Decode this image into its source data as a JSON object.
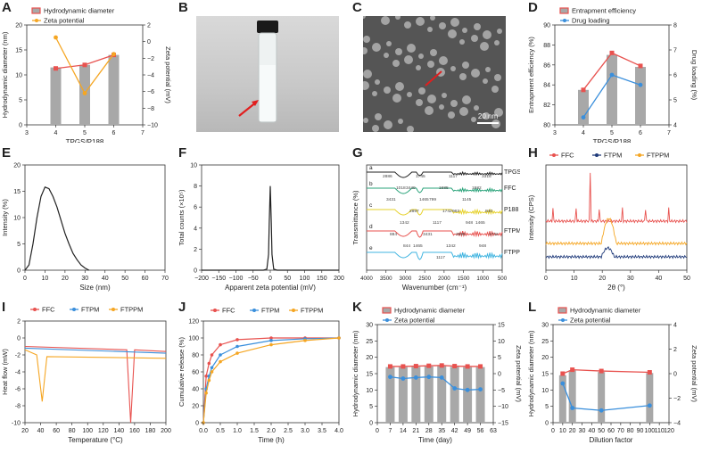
{
  "colors": {
    "bar": "#a8a8a8",
    "red": "#e8524f",
    "orange": "#f5a623",
    "blue": "#3a8fdc",
    "black": "#222222",
    "green": "#2aa37a",
    "yellow": "#e6d12a",
    "cyan": "#40b4e0",
    "purple": "#6a5acd",
    "navy": "#1f3a7a"
  },
  "panels": {
    "A": {
      "letter": "A",
      "xlabel": "TPGS/P188",
      "ylabel_left": "Hydrodynamic diameter (nm)",
      "ylabel_right": "Zeta potential (mV)",
      "legend": [
        "Hydrodynamic diameter",
        "Zeta potential"
      ],
      "xticks": [
        "3",
        "4",
        "5",
        "6",
        "7"
      ],
      "ylticks": [
        "0",
        "5",
        "10",
        "15",
        "20"
      ],
      "yrticks": [
        "2",
        "0",
        "−2",
        "−4",
        "−6",
        "−8",
        "−10"
      ]
    },
    "B": {
      "letter": "B"
    },
    "C": {
      "letter": "C",
      "scalebar": "20 nm"
    },
    "D": {
      "letter": "D",
      "xlabel": "TPGS/P188",
      "ylabel_left": "Entrapment efficiency (%)",
      "ylabel_right": "Drug loading (%)",
      "legend": [
        "Entrapment efficiency",
        "Drug loading"
      ],
      "xticks": [
        "3",
        "4",
        "5",
        "6",
        "7"
      ],
      "ylticks": [
        "80",
        "82",
        "84",
        "86",
        "88",
        "90"
      ],
      "yrticks": [
        "4",
        "5",
        "6",
        "7",
        "8"
      ]
    },
    "E": {
      "letter": "E",
      "xlabel": "Size (nm)",
      "ylabel": "Intensity (%)",
      "xticks": [
        "0",
        "10",
        "20",
        "30",
        "40",
        "50",
        "60",
        "70"
      ],
      "yticks": [
        "0",
        "5",
        "10",
        "15",
        "20"
      ]
    },
    "F": {
      "letter": "F",
      "xlabel": "Apparent zeta potential (mV)",
      "ylabel": "Total counts (×10⁵)",
      "xticks": [
        "−200",
        "−150",
        "−100",
        "−50",
        "0",
        "50",
        "100",
        "150",
        "200"
      ],
      "yticks": [
        "0",
        "2",
        "4",
        "6",
        "8",
        "10"
      ]
    },
    "G": {
      "letter": "G",
      "xlabel": "Wavenumber (cm⁻¹)",
      "ylabel": "Transmittance (%)",
      "xticks": [
        "4000",
        "3500",
        "3000",
        "2500",
        "2000",
        "1500",
        "1000",
        "500"
      ],
      "traces": [
        {
          "tag": "a",
          "name": "TPGS"
        },
        {
          "tag": "b",
          "name": "FFC"
        },
        {
          "tag": "c",
          "name": "P188"
        },
        {
          "tag": "d",
          "name": "FTPM"
        },
        {
          "tag": "e",
          "name": "FTPPM"
        }
      ],
      "peak_labels": [
        "2886",
        "1745",
        "1117",
        "3316",
        "3449",
        "1685",
        "1582",
        "1018",
        "799",
        "1145",
        "3431",
        "1465",
        "963",
        "840",
        "2897",
        "1742",
        "1465",
        "1342",
        "1117",
        "948",
        "884",
        "3431",
        "2895",
        "1742",
        "1465",
        "1342",
        "948",
        "844",
        "1117"
      ]
    },
    "H": {
      "letter": "H",
      "xlabel": "2θ (°)",
      "ylabel": "Intensity (CPS)",
      "legend": [
        "FFC",
        "FTPM",
        "FTPPM"
      ],
      "xticks": [
        "0",
        "10",
        "20",
        "30",
        "40",
        "50"
      ]
    },
    "I": {
      "letter": "I",
      "xlabel": "Temperature (°C)",
      "ylabel": "Heat flow (mW)",
      "legend": [
        "FFC",
        "FTPM",
        "FTPPM"
      ],
      "xticks": [
        "20",
        "40",
        "60",
        "80",
        "100",
        "120",
        "140",
        "160",
        "180",
        "200"
      ],
      "yticks": [
        "-10",
        "-8",
        "-6",
        "-4",
        "-2",
        "0",
        "2"
      ]
    },
    "J": {
      "letter": "J",
      "xlabel": "Time (h)",
      "ylabel": "Cumulative release (%)",
      "legend": [
        "FFC",
        "FTPM",
        "FTPPM"
      ],
      "xticks": [
        "0.0",
        "0.5",
        "1.0",
        "1.5",
        "2.0",
        "2.5",
        "3.0",
        "3.5",
        "4.0"
      ],
      "yticks": [
        "0",
        "20",
        "40",
        "60",
        "80",
        "100",
        "120"
      ]
    },
    "K": {
      "letter": "K",
      "xlabel": "Time (day)",
      "ylabel_left": "Hydrodynamic diameter (nm)",
      "ylabel_right": "Zeta potential (mV)",
      "legend": [
        "Hydrodynamic diameter",
        "Zeta potential"
      ],
      "xticks": [
        "0",
        "7",
        "14",
        "21",
        "28",
        "35",
        "42",
        "49",
        "56",
        "63"
      ],
      "ylticks": [
        "0",
        "5",
        "10",
        "15",
        "20",
        "25",
        "30"
      ],
      "yrticks": [
        "15",
        "10",
        "5",
        "0",
        "−5",
        "−10",
        "−15"
      ]
    },
    "L": {
      "letter": "L",
      "xlabel": "Dilution factor",
      "ylabel_left": "Hydrodynamic diameter (nm)",
      "ylabel_right": "Zeta potential (mV)",
      "legend": [
        "Hydrodynamic diameter",
        "Zeta potential"
      ],
      "xticks": [
        "0",
        "10",
        "20",
        "30",
        "40",
        "50",
        "60",
        "70",
        "80",
        "90",
        "100",
        "110",
        "120"
      ],
      "ylticks": [
        "0",
        "5",
        "10",
        "15",
        "20",
        "25",
        "30"
      ],
      "yrticks": [
        "4",
        "2",
        "0",
        "−2",
        "−4"
      ]
    }
  },
  "chart_data": [
    {
      "panel": "A",
      "type": "bar",
      "x": [
        4,
        5,
        6
      ],
      "xlim": [
        3,
        7
      ],
      "series": [
        {
          "name": "Hydrodynamic diameter",
          "kind": "bar",
          "values": [
            11.5,
            12.0,
            14.0
          ],
          "ylim": [
            0,
            20
          ]
        },
        {
          "name": "Hydrodynamic diameter",
          "kind": "line",
          "values": [
            11.3,
            12.0,
            14.0
          ],
          "ylim": [
            0,
            20
          ]
        },
        {
          "name": "Zeta potential",
          "kind": "line",
          "axis": "right",
          "values": [
            0.5,
            -6.2,
            -1.5
          ],
          "ylim": [
            -10,
            2
          ]
        }
      ]
    },
    {
      "panel": "D",
      "type": "bar",
      "x": [
        4,
        5,
        6
      ],
      "xlim": [
        3,
        7
      ],
      "series": [
        {
          "name": "Entrapment efficiency",
          "kind": "bar",
          "values": [
            83.5,
            87.0,
            85.8
          ],
          "ylim": [
            80,
            90
          ]
        },
        {
          "name": "Entrapment efficiency",
          "kind": "line",
          "values": [
            83.5,
            87.2,
            85.9
          ],
          "ylim": [
            80,
            90
          ]
        },
        {
          "name": "Drug loading",
          "kind": "line",
          "axis": "right",
          "values": [
            4.3,
            6.0,
            5.6
          ],
          "ylim": [
            4,
            8
          ]
        }
      ]
    },
    {
      "panel": "E",
      "type": "line",
      "x": [
        0,
        2,
        4,
        6,
        8,
        10,
        12,
        14,
        16,
        18,
        20,
        22,
        24,
        26,
        28,
        30,
        32
      ],
      "series": [
        {
          "name": "",
          "values": [
            0,
            1,
            5,
            10,
            14,
            15.8,
            15.5,
            14,
            12,
            9.5,
            7,
            5,
            3.2,
            2,
            1,
            0.4,
            0
          ]
        }
      ],
      "xlim": [
        0,
        70
      ],
      "ylim": [
        0,
        20
      ]
    },
    {
      "panel": "F",
      "type": "line",
      "x": [
        -200,
        -20,
        -10,
        -5,
        -3,
        0,
        3,
        5,
        10,
        20,
        200
      ],
      "series": [
        {
          "name": "",
          "values": [
            0,
            0,
            0.1,
            1.5,
            4.5,
            8.0,
            4.5,
            1.5,
            0.1,
            0,
            0
          ]
        }
      ],
      "xlim": [
        -200,
        200
      ],
      "ylim": [
        0,
        10
      ]
    },
    {
      "panel": "J",
      "type": "line",
      "x": [
        0,
        0.083,
        0.167,
        0.25,
        0.5,
        1,
        2,
        3,
        4
      ],
      "series": [
        {
          "name": "FFC",
          "values": [
            0,
            55,
            70,
            80,
            92,
            98,
            100,
            100,
            100
          ]
        },
        {
          "name": "FTPM",
          "values": [
            0,
            40,
            55,
            65,
            80,
            90,
            97,
            99,
            100
          ]
        },
        {
          "name": "FTPPM",
          "values": [
            0,
            35,
            50,
            60,
            72,
            82,
            92,
            97,
            100
          ]
        }
      ],
      "xlim": [
        0,
        4
      ],
      "ylim": [
        0,
        120
      ]
    },
    {
      "panel": "K",
      "type": "bar",
      "x": [
        7,
        14,
        21,
        28,
        35,
        42,
        49,
        56
      ],
      "xlim": [
        0,
        63
      ],
      "series": [
        {
          "name": "Hydrodynamic diameter",
          "kind": "bar",
          "values": [
            17.0,
            17.0,
            17.1,
            17.2,
            17.3,
            17.1,
            17.0,
            17.0
          ],
          "ylim": [
            0,
            30
          ]
        },
        {
          "name": "Hydrodynamic diameter",
          "kind": "line",
          "values": [
            17.2,
            17.2,
            17.3,
            17.4,
            17.5,
            17.3,
            17.2,
            17.2
          ],
          "ylim": [
            0,
            30
          ]
        },
        {
          "name": "Zeta potential",
          "kind": "line",
          "axis": "right",
          "values": [
            -1.0,
            -1.5,
            -1.2,
            -1.0,
            -1.2,
            -4.5,
            -5.0,
            -4.8
          ],
          "ylim": [
            -15,
            15
          ]
        }
      ]
    },
    {
      "panel": "L",
      "type": "bar",
      "x": [
        10,
        20,
        50,
        100
      ],
      "xlim": [
        0,
        120
      ],
      "series": [
        {
          "name": "Hydrodynamic diameter",
          "kind": "bar",
          "values": [
            14.5,
            16.0,
            15.5,
            15.2
          ],
          "ylim": [
            0,
            30
          ]
        },
        {
          "name": "Hydrodynamic diameter",
          "kind": "line",
          "values": [
            15.0,
            16.2,
            15.8,
            15.4
          ],
          "ylim": [
            0,
            30
          ]
        },
        {
          "name": "Zeta potential",
          "kind": "line",
          "axis": "right",
          "values": [
            -0.8,
            -2.8,
            -3.0,
            -2.6
          ],
          "ylim": [
            -4,
            4
          ]
        }
      ]
    }
  ]
}
